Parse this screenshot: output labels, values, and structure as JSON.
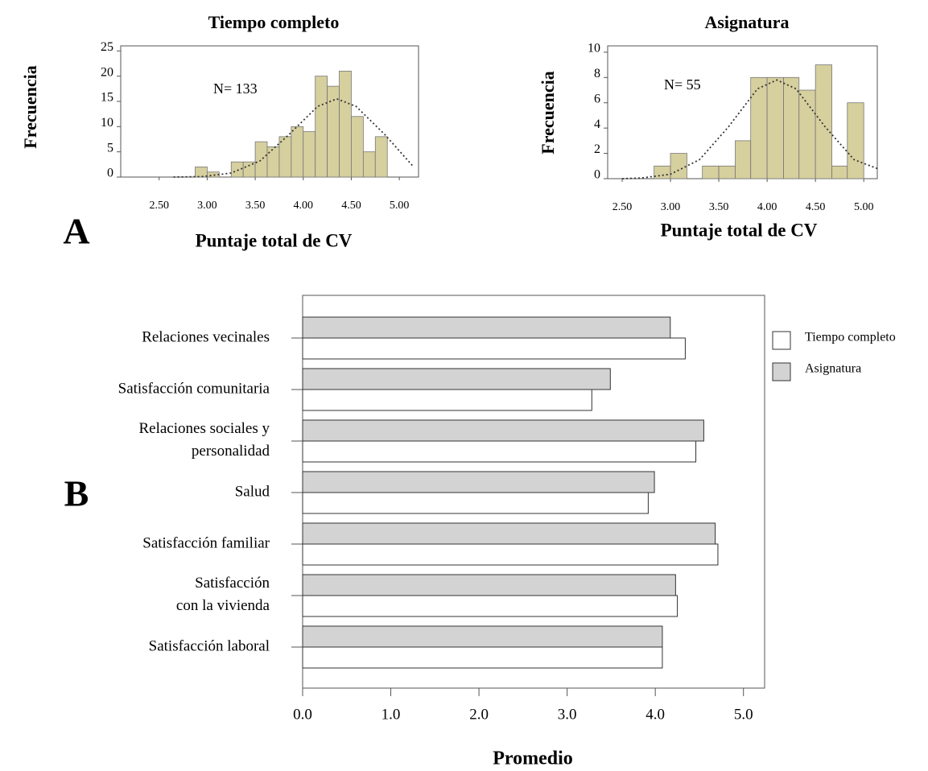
{
  "panel_labels": [
    "A",
    "B"
  ],
  "chart_data": [
    {
      "type": "histogram",
      "title": "Tiempo completo",
      "xlabel": "Puntaje total de CV",
      "ylabel": "Frecuencia",
      "annotation": "N= 133",
      "color": "#d6cf9e",
      "bins": [
        2.875,
        3.0,
        3.125,
        3.25,
        3.375,
        3.5,
        3.625,
        3.75,
        3.875,
        4.0,
        4.125,
        4.25,
        4.375,
        4.5,
        4.625,
        4.75,
        4.875
      ],
      "counts": [
        2,
        1,
        0,
        3,
        3,
        7,
        6,
        8,
        10,
        9,
        20,
        18,
        21,
        12,
        5,
        8
      ],
      "curve": {
        "x": [
          2.65,
          2.95,
          3.25,
          3.55,
          3.85,
          4.15,
          4.35,
          4.55,
          4.85,
          5.15
        ],
        "y": [
          0,
          0.1,
          0.8,
          3.2,
          8.4,
          14.0,
          15.5,
          14.0,
          8.4,
          2.0
        ]
      },
      "xlim": [
        2.1,
        5.2
      ],
      "ylim": [
        0,
        26
      ],
      "xticks": [
        {
          "value": 2.5,
          "label": "2.50"
        },
        {
          "value": 3.0,
          "label": "3.00"
        },
        {
          "value": 3.5,
          "label": "3.50"
        },
        {
          "value": 4.0,
          "label": "4.00"
        },
        {
          "value": 4.5,
          "label": "4.50"
        },
        {
          "value": 5.0,
          "label": "5.00"
        }
      ],
      "yticks": [
        0,
        5,
        10,
        15,
        20,
        25
      ]
    },
    {
      "type": "histogram",
      "title": "Asignatura",
      "xlabel": "Puntaje total de CV",
      "ylabel": "Frecuencia",
      "annotation": "N= 55",
      "color": "#d6cf9e",
      "bins": [
        2.83,
        3.0,
        3.17,
        3.33,
        3.5,
        3.67,
        3.83,
        4.0,
        4.17,
        4.33,
        4.5,
        4.67,
        4.83,
        5.0
      ],
      "counts": [
        1,
        2,
        0,
        1,
        1,
        3,
        8,
        8,
        8,
        7,
        9,
        1,
        6
      ],
      "curve": {
        "x": [
          2.5,
          2.7,
          3.0,
          3.3,
          3.6,
          3.9,
          4.1,
          4.3,
          4.6,
          4.9,
          5.14
        ],
        "y": [
          0,
          0.05,
          0.35,
          1.5,
          4.1,
          7.1,
          7.8,
          7.1,
          4.1,
          1.5,
          0.8
        ]
      },
      "xlim": [
        2.35,
        5.14
      ],
      "ylim": [
        0,
        10.5
      ],
      "xticks": [
        {
          "value": 2.5,
          "label": "2.50"
        },
        {
          "value": 3.0,
          "label": "3.00"
        },
        {
          "value": 3.5,
          "label": "3.50"
        },
        {
          "value": 4.0,
          "label": "4.00"
        },
        {
          "value": 4.5,
          "label": "4.50"
        },
        {
          "value": 5.0,
          "label": "5.00"
        }
      ],
      "yticks": [
        0,
        2,
        4,
        6,
        8,
        10
      ]
    },
    {
      "type": "bar",
      "orientation": "horizontal",
      "xlabel": "Promedio",
      "categories": [
        "Relaciones vecinales",
        "Satisfacción comunitaria",
        "Relaciones sociales y\npersonalidad",
        "Salud",
        "Satisfacción familiar",
        "Satisfacción\ncon la vivienda",
        "Satisfacción laboral"
      ],
      "series": [
        {
          "name": "Tiempo completo",
          "color": "#ffffff",
          "values": [
            4.34,
            3.28,
            4.46,
            3.92,
            4.71,
            4.25,
            4.08
          ]
        },
        {
          "name": "Asignatura",
          "color": "#d3d3d3",
          "values": [
            4.17,
            3.49,
            4.55,
            3.99,
            4.68,
            4.23,
            4.08
          ]
        }
      ],
      "xlim": [
        0,
        5.24
      ],
      "xticks": [
        {
          "value": 0,
          "label": "0.0"
        },
        {
          "value": 1,
          "label": "1.0"
        },
        {
          "value": 2,
          "label": "2.0"
        },
        {
          "value": 3,
          "label": "3.0"
        },
        {
          "value": 4,
          "label": "4.0"
        },
        {
          "value": 5,
          "label": "5.0"
        }
      ],
      "legend": "right"
    }
  ]
}
